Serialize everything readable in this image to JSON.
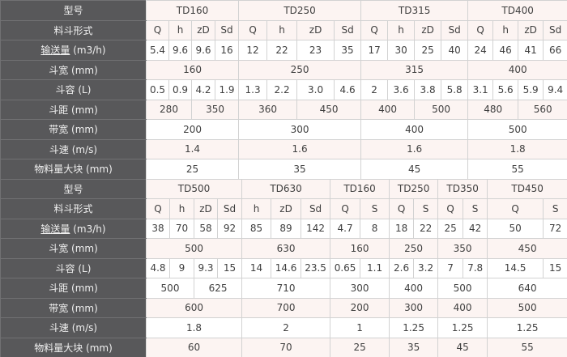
{
  "colors": {
    "header_bg": "#58585a",
    "header_text": "#efefef",
    "row_shaded": "#fcf4f2",
    "row_plain": "#ffffff",
    "border_light": "#d2d2d2",
    "border_dark": "#717173",
    "cell_text": "#404040"
  },
  "tables": [
    {
      "name": "spec-table-top",
      "rows": [
        {
          "id": "model",
          "label": "型号",
          "unit": "",
          "underline": false,
          "shaded": true,
          "cells": [
            {
              "v": "TD160",
              "span": 4
            },
            {
              "v": "TD250",
              "span": 4
            },
            {
              "v": "TD315",
              "span": 4
            },
            {
              "v": "TD400",
              "span": 4
            }
          ]
        },
        {
          "id": "bucket-type",
          "label": "料斗形式",
          "unit": "",
          "underline": false,
          "shaded": true,
          "cells": [
            {
              "v": "Q",
              "span": 1
            },
            {
              "v": "h",
              "span": 1
            },
            {
              "v": "zD",
              "span": 1
            },
            {
              "v": "Sd",
              "span": 1
            },
            {
              "v": "Q",
              "span": 1
            },
            {
              "v": "h",
              "span": 1
            },
            {
              "v": "zD",
              "span": 1
            },
            {
              "v": "Sd",
              "span": 1
            },
            {
              "v": "Q",
              "span": 1
            },
            {
              "v": "h",
              "span": 1
            },
            {
              "v": "zD",
              "span": 1
            },
            {
              "v": "Sd",
              "span": 1
            },
            {
              "v": "Q",
              "span": 1
            },
            {
              "v": "h",
              "span": 1
            },
            {
              "v": "zD",
              "span": 1
            },
            {
              "v": "Sd",
              "span": 1
            }
          ]
        },
        {
          "id": "capacity",
          "label": "输送量",
          "unit": "(m3/h)",
          "underline": true,
          "shaded": false,
          "cells": [
            {
              "v": "5.4",
              "span": 1
            },
            {
              "v": "9.6",
              "span": 1
            },
            {
              "v": "9.6",
              "span": 1
            },
            {
              "v": "16",
              "span": 1
            },
            {
              "v": "12",
              "span": 1
            },
            {
              "v": "22",
              "span": 1
            },
            {
              "v": "23",
              "span": 1
            },
            {
              "v": "35",
              "span": 1
            },
            {
              "v": "17",
              "span": 1
            },
            {
              "v": "30",
              "span": 1
            },
            {
              "v": "25",
              "span": 1
            },
            {
              "v": "40",
              "span": 1
            },
            {
              "v": "24",
              "span": 1
            },
            {
              "v": "46",
              "span": 1
            },
            {
              "v": "41",
              "span": 1
            },
            {
              "v": "66",
              "span": 1
            }
          ]
        },
        {
          "id": "bucket-width",
          "label": "斗宽",
          "unit": "(mm)",
          "underline": false,
          "shaded": true,
          "cells": [
            {
              "v": "160",
              "span": 4
            },
            {
              "v": "250",
              "span": 4
            },
            {
              "v": "315",
              "span": 4
            },
            {
              "v": "400",
              "span": 4
            }
          ]
        },
        {
          "id": "bucket-volume",
          "label": "斗容",
          "unit": "(L)",
          "underline": false,
          "shaded": false,
          "cells": [
            {
              "v": "0.5",
              "span": 1
            },
            {
              "v": "0.9",
              "span": 1
            },
            {
              "v": "4.2",
              "span": 1
            },
            {
              "v": "1.9",
              "span": 1
            },
            {
              "v": "1.3",
              "span": 1
            },
            {
              "v": "2.2",
              "span": 1
            },
            {
              "v": "3.0",
              "span": 1
            },
            {
              "v": "4.6",
              "span": 1
            },
            {
              "v": "2",
              "span": 1
            },
            {
              "v": "3.6",
              "span": 1
            },
            {
              "v": "3.8",
              "span": 1
            },
            {
              "v": "5.8",
              "span": 1
            },
            {
              "v": "3.1",
              "span": 1
            },
            {
              "v": "5.6",
              "span": 1
            },
            {
              "v": "5.9",
              "span": 1
            },
            {
              "v": "9.4",
              "span": 1
            }
          ]
        },
        {
          "id": "bucket-pitch",
          "label": "斗距",
          "unit": "(mm)",
          "underline": false,
          "shaded": true,
          "cells": [
            {
              "v": "280",
              "span": 2
            },
            {
              "v": "350",
              "span": 2
            },
            {
              "v": "360",
              "span": 2
            },
            {
              "v": "450",
              "span": 2
            },
            {
              "v": "400",
              "span": 2
            },
            {
              "v": "500",
              "span": 2
            },
            {
              "v": "480",
              "span": 2
            },
            {
              "v": "560",
              "span": 2
            }
          ]
        },
        {
          "id": "belt-width",
          "label": "带宽",
          "unit": "(mm)",
          "underline": false,
          "shaded": false,
          "cells": [
            {
              "v": "200",
              "span": 4
            },
            {
              "v": "300",
              "span": 4
            },
            {
              "v": "400",
              "span": 4
            },
            {
              "v": "500",
              "span": 4
            }
          ]
        },
        {
          "id": "bucket-speed",
          "label": "斗速",
          "unit": "(m/s)",
          "underline": false,
          "shaded": true,
          "cells": [
            {
              "v": "1.4",
              "span": 4
            },
            {
              "v": "1.6",
              "span": 4
            },
            {
              "v": "1.6",
              "span": 4
            },
            {
              "v": "1.8",
              "span": 4
            }
          ]
        },
        {
          "id": "max-lump",
          "label": "物料量大块",
          "unit": "(mm)",
          "underline": false,
          "shaded": false,
          "cells": [
            {
              "v": "25",
              "span": 4
            },
            {
              "v": "35",
              "span": 4
            },
            {
              "v": "45",
              "span": 4
            },
            {
              "v": "55",
              "span": 4
            }
          ]
        }
      ]
    },
    {
      "name": "spec-table-bottom",
      "rows": [
        {
          "id": "model",
          "label": "型号",
          "unit": "",
          "underline": false,
          "shaded": true,
          "cells": [
            {
              "v": "TD500",
              "span": 4
            },
            {
              "v": "TD630",
              "span": 3
            },
            {
              "v": "TD160",
              "span": 2
            },
            {
              "v": "TD250",
              "span": 2
            },
            {
              "v": "TD350",
              "span": 2
            },
            {
              "v": "TD450",
              "span": 2
            }
          ]
        },
        {
          "id": "bucket-type",
          "label": "料斗形式",
          "unit": "",
          "underline": false,
          "shaded": true,
          "cells": [
            {
              "v": "Q",
              "span": 1
            },
            {
              "v": "h",
              "span": 1
            },
            {
              "v": "zD",
              "span": 1
            },
            {
              "v": "Sd",
              "span": 1
            },
            {
              "v": "h",
              "span": 1
            },
            {
              "v": "zD",
              "span": 1
            },
            {
              "v": "Sd",
              "span": 1
            },
            {
              "v": "Q",
              "span": 1
            },
            {
              "v": "S",
              "span": 1
            },
            {
              "v": "Q",
              "span": 1
            },
            {
              "v": "S",
              "span": 1
            },
            {
              "v": "Q",
              "span": 1
            },
            {
              "v": "S",
              "span": 1
            },
            {
              "v": "Q",
              "span": 1
            },
            {
              "v": "S",
              "span": 1
            }
          ]
        },
        {
          "id": "capacity",
          "label": "输送量",
          "unit": "(m3/h)",
          "underline": true,
          "shaded": false,
          "cells": [
            {
              "v": "38",
              "span": 1
            },
            {
              "v": "70",
              "span": 1
            },
            {
              "v": "58",
              "span": 1
            },
            {
              "v": "92",
              "span": 1
            },
            {
              "v": "85",
              "span": 1
            },
            {
              "v": "89",
              "span": 1
            },
            {
              "v": "142",
              "span": 1
            },
            {
              "v": "4.7",
              "span": 1
            },
            {
              "v": "8",
              "span": 1
            },
            {
              "v": "18",
              "span": 1
            },
            {
              "v": "22",
              "span": 1
            },
            {
              "v": "25",
              "span": 1
            },
            {
              "v": "42",
              "span": 1
            },
            {
              "v": "50",
              "span": 1
            },
            {
              "v": "72",
              "span": 1
            }
          ]
        },
        {
          "id": "bucket-width",
          "label": "斗宽",
          "unit": "(mm)",
          "underline": false,
          "shaded": true,
          "cells": [
            {
              "v": "500",
              "span": 4
            },
            {
              "v": "630",
              "span": 3
            },
            {
              "v": "160",
              "span": 2
            },
            {
              "v": "250",
              "span": 2
            },
            {
              "v": "350",
              "span": 2
            },
            {
              "v": "450",
              "span": 2
            }
          ]
        },
        {
          "id": "bucket-volume",
          "label": "斗容",
          "unit": "(L)",
          "underline": false,
          "shaded": false,
          "cells": [
            {
              "v": "4.8",
              "span": 1
            },
            {
              "v": "9",
              "span": 1
            },
            {
              "v": "9.3",
              "span": 1
            },
            {
              "v": "15",
              "span": 1
            },
            {
              "v": "14",
              "span": 1
            },
            {
              "v": "14.6",
              "span": 1
            },
            {
              "v": "23.5",
              "span": 1
            },
            {
              "v": "0.65",
              "span": 1
            },
            {
              "v": "1.1",
              "span": 1
            },
            {
              "v": "2.6",
              "span": 1
            },
            {
              "v": "3.2",
              "span": 1
            },
            {
              "v": "7",
              "span": 1
            },
            {
              "v": "7.8",
              "span": 1
            },
            {
              "v": "14.5",
              "span": 1
            },
            {
              "v": "15",
              "span": 1
            }
          ]
        },
        {
          "id": "bucket-pitch",
          "label": "斗距",
          "unit": "(mm)",
          "underline": false,
          "shaded": false,
          "cells": [
            {
              "v": "500",
              "span": 2
            },
            {
              "v": "625",
              "span": 2
            },
            {
              "v": "710",
              "span": 3
            },
            {
              "v": "300",
              "span": 2
            },
            {
              "v": "400",
              "span": 2
            },
            {
              "v": "500",
              "span": 2
            },
            {
              "v": "640",
              "span": 2
            }
          ]
        },
        {
          "id": "belt-width",
          "label": "带宽",
          "unit": "(mm)",
          "underline": false,
          "shaded": true,
          "cells": [
            {
              "v": "600",
              "span": 4
            },
            {
              "v": "700",
              "span": 3
            },
            {
              "v": "200",
              "span": 2
            },
            {
              "v": "300",
              "span": 2
            },
            {
              "v": "400",
              "span": 2
            },
            {
              "v": "500",
              "span": 2
            }
          ]
        },
        {
          "id": "bucket-speed",
          "label": "斗速",
          "unit": "(m/s)",
          "underline": false,
          "shaded": false,
          "cells": [
            {
              "v": "1.8",
              "span": 4
            },
            {
              "v": "2",
              "span": 3
            },
            {
              "v": "1",
              "span": 2
            },
            {
              "v": "1.25",
              "span": 2
            },
            {
              "v": "1.25",
              "span": 2
            },
            {
              "v": "1.25",
              "span": 2
            }
          ]
        },
        {
          "id": "max-lump",
          "label": "物料量大块",
          "unit": "(mm)",
          "underline": false,
          "shaded": true,
          "cells": [
            {
              "v": "60",
              "span": 4
            },
            {
              "v": "70",
              "span": 3
            },
            {
              "v": "25",
              "span": 2
            },
            {
              "v": "35",
              "span": 2
            },
            {
              "v": "45",
              "span": 2
            },
            {
              "v": "55",
              "span": 2
            }
          ]
        }
      ]
    }
  ]
}
